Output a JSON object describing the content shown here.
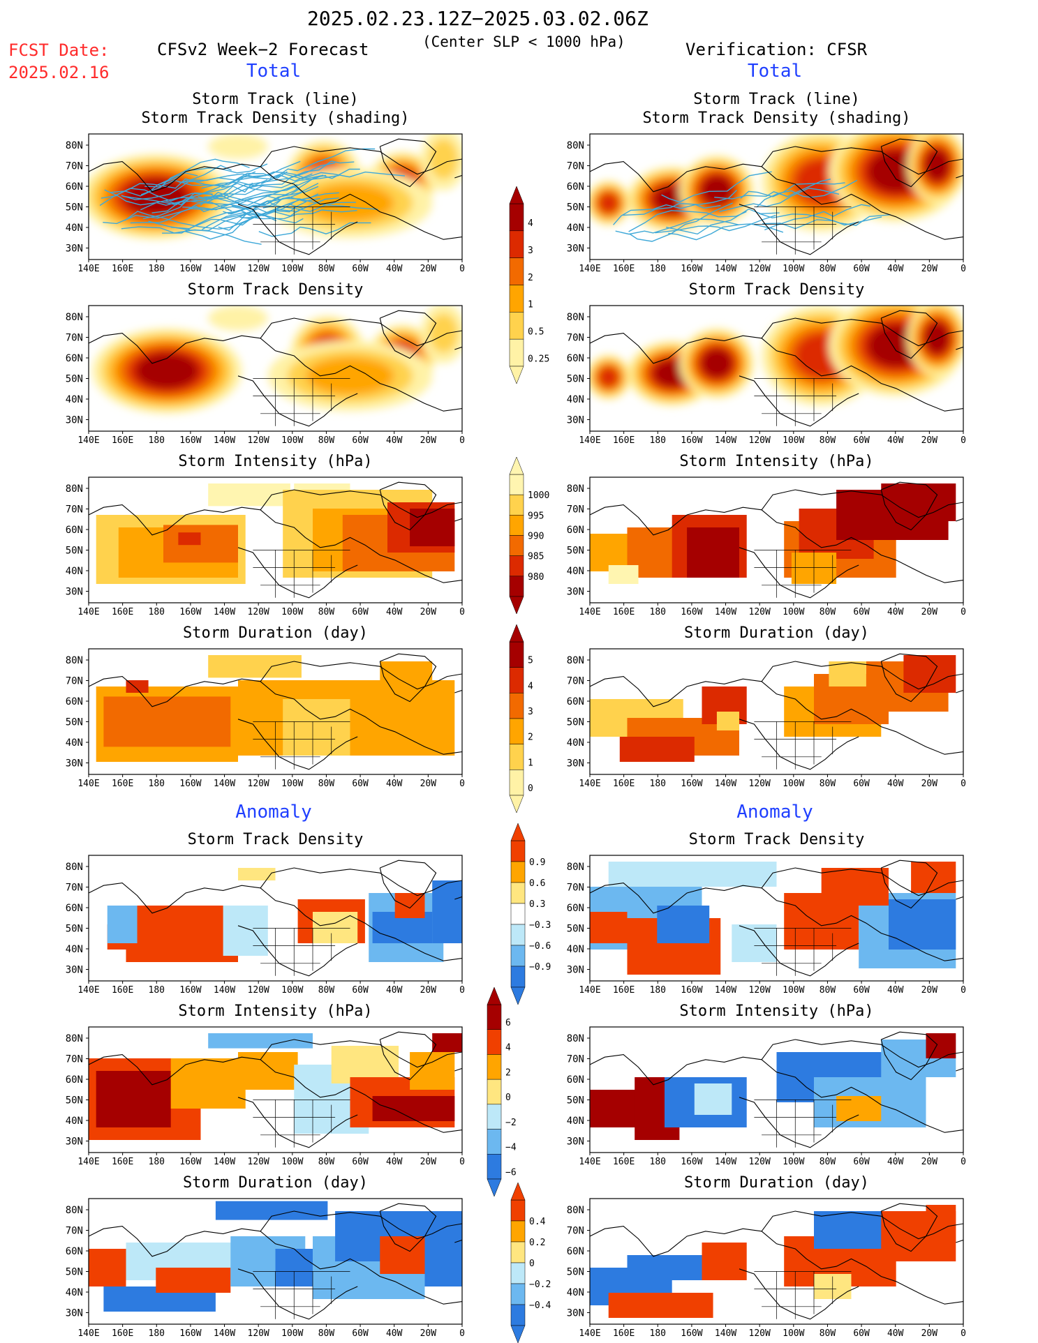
{
  "header": {
    "date_range": "2025.02.23.12Z−2025.03.02.06Z",
    "criteria": "(Center SLP < 1000 hPa)",
    "fcst_label": "FCST Date:",
    "fcst_date": "2025.02.16",
    "left_title": "CFSv2 Week−2 Forecast",
    "right_title": "Verification: CFSR",
    "total_label": "Total",
    "anomaly_label": "Anomaly"
  },
  "colors": {
    "red_text": "#ff2a2a",
    "blue_text": "#1f3fff",
    "track_line": "#3ea8d8",
    "land_outline": "#000000"
  },
  "map_axes": {
    "lat_labels": [
      "80N",
      "70N",
      "60N",
      "50N",
      "40N",
      "30N"
    ],
    "lon_labels": [
      "140E",
      "160E",
      "180",
      "160W",
      "140W",
      "120W",
      "100W",
      "80W",
      "60W",
      "40W",
      "20W",
      "0"
    ]
  },
  "panels": {
    "left": [
      {
        "title1": "Storm Track (line)",
        "title2": "Storm Track Density (shading)"
      },
      {
        "title1": "",
        "title2": "Storm Track Density"
      },
      {
        "title1": "",
        "title2": "Storm Intensity (hPa)"
      },
      {
        "title1": "",
        "title2": "Storm Duration (day)"
      },
      {
        "title1": "",
        "title2": "Storm Track Density"
      },
      {
        "title1": "",
        "title2": "Storm Intensity (hPa)"
      },
      {
        "title1": "",
        "title2": "Storm Duration (day)"
      }
    ],
    "right": [
      {
        "title1": "Storm Track (line)",
        "title2": "Storm Track Density (shading)"
      },
      {
        "title1": "",
        "title2": "Storm Track Density"
      },
      {
        "title1": "",
        "title2": "Storm Intensity (hPa)"
      },
      {
        "title1": "",
        "title2": "Storm Duration (day)"
      },
      {
        "title1": "",
        "title2": "Storm Track Density"
      },
      {
        "title1": "",
        "title2": "Storm Intensity (hPa)"
      },
      {
        "title1": "",
        "title2": "Storm Duration (day)"
      }
    ]
  },
  "colorbars": {
    "density_total": {
      "labels": [
        "4",
        "3",
        "2",
        "1",
        "0.5",
        "0.25"
      ],
      "colors": [
        "#a50000",
        "#dc2a00",
        "#f26a00",
        "#ffa500",
        "#ffd24d",
        "#fff2a6"
      ]
    },
    "intensity_total": {
      "labels": [
        "1000",
        "995",
        "990",
        "985",
        "980"
      ],
      "colors": [
        "#fff5b0",
        "#ffd24d",
        "#ffa500",
        "#f26a00",
        "#dc2a00",
        "#a50000"
      ]
    },
    "duration_total": {
      "labels": [
        "5",
        "4",
        "3",
        "2",
        "1",
        "0"
      ],
      "colors": [
        "#a50000",
        "#dc2a00",
        "#f26a00",
        "#ffa500",
        "#ffd24d",
        "#fff2a6"
      ]
    },
    "density_anom": {
      "labels": [
        "0.9",
        "0.6",
        "0.3",
        "−0.3",
        "−0.6",
        "−0.9"
      ],
      "colors": [
        "#f04000",
        "#ffa500",
        "#ffe680",
        "#ffffff",
        "#bde8f8",
        "#6cb8f0",
        "#2d7be0"
      ]
    },
    "intensity_anom": {
      "labels": [
        "6",
        "4",
        "2",
        "0",
        "−2",
        "−4",
        "−6"
      ],
      "colors": [
        "#a50000",
        "#f04000",
        "#ffa500",
        "#ffe680",
        "#bde8f8",
        "#6cb8f0",
        "#2d7be0"
      ]
    },
    "duration_anom": {
      "labels": [
        "0.4",
        "0.2",
        "0",
        "−0.2",
        "−0.4"
      ],
      "colors": [
        "#f04000",
        "#ffa500",
        "#ffe680",
        "#bde8f8",
        "#6cb8f0",
        "#2d7be0"
      ]
    }
  }
}
